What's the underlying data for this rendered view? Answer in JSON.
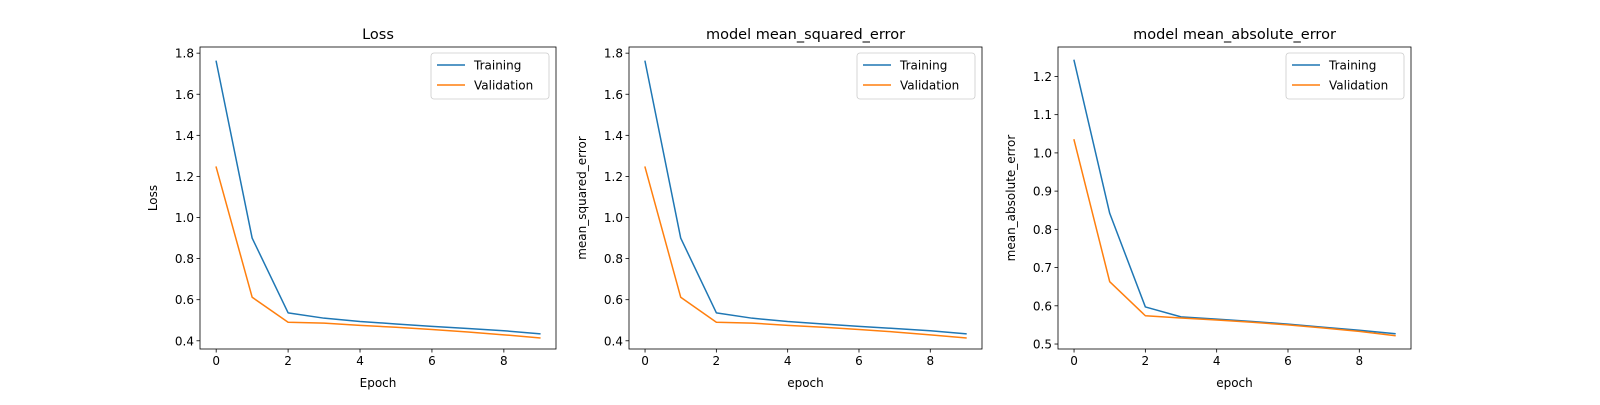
{
  "chart_data": [
    {
      "type": "line",
      "title": "Loss",
      "xlabel": "Epoch",
      "ylabel": "Loss",
      "x": [
        0,
        1,
        2,
        3,
        4,
        5,
        6,
        7,
        8,
        9
      ],
      "xlim": [
        -0.45,
        9.45
      ],
      "ylim": [
        0.36,
        1.83
      ],
      "xticks": [
        0,
        2,
        4,
        6,
        8
      ],
      "yticks": [
        0.4,
        0.6,
        0.8,
        1.0,
        1.2,
        1.4,
        1.6,
        1.8
      ],
      "ytick_labels": [
        "0.4",
        "0.6",
        "0.8",
        "1.0",
        "1.2",
        "1.4",
        "1.6",
        "1.8"
      ],
      "legend_position": "top-right",
      "series": [
        {
          "name": "Training",
          "color": "#1f77b4",
          "values": [
            1.76,
            0.9,
            0.536,
            0.51,
            0.494,
            0.482,
            0.47,
            0.46,
            0.449,
            0.434
          ]
        },
        {
          "name": "Validation",
          "color": "#ff7f0e",
          "values": [
            1.245,
            0.612,
            0.49,
            0.486,
            0.475,
            0.466,
            0.455,
            0.443,
            0.429,
            0.414
          ]
        }
      ]
    },
    {
      "type": "line",
      "title": "model mean_squared_error",
      "xlabel": "epoch",
      "ylabel": "mean_squared_error",
      "x": [
        0,
        1,
        2,
        3,
        4,
        5,
        6,
        7,
        8,
        9
      ],
      "xlim": [
        -0.45,
        9.45
      ],
      "ylim": [
        0.36,
        1.83
      ],
      "xticks": [
        0,
        2,
        4,
        6,
        8
      ],
      "yticks": [
        0.4,
        0.6,
        0.8,
        1.0,
        1.2,
        1.4,
        1.6,
        1.8
      ],
      "ytick_labels": [
        "0.4",
        "0.6",
        "0.8",
        "1.0",
        "1.2",
        "1.4",
        "1.6",
        "1.8"
      ],
      "legend_position": "top-right",
      "series": [
        {
          "name": "Training",
          "color": "#1f77b4",
          "values": [
            1.76,
            0.9,
            0.536,
            0.51,
            0.494,
            0.482,
            0.47,
            0.46,
            0.449,
            0.434
          ]
        },
        {
          "name": "Validation",
          "color": "#ff7f0e",
          "values": [
            1.245,
            0.612,
            0.49,
            0.486,
            0.475,
            0.466,
            0.455,
            0.443,
            0.429,
            0.414
          ]
        }
      ]
    },
    {
      "type": "line",
      "title": "model mean_absolute_error",
      "xlabel": "epoch",
      "ylabel": "mean_absolute_error",
      "x": [
        0,
        1,
        2,
        3,
        4,
        5,
        6,
        7,
        8,
        9
      ],
      "xlim": [
        -0.45,
        9.45
      ],
      "ylim": [
        0.487,
        1.277
      ],
      "xticks": [
        0,
        2,
        4,
        6,
        8
      ],
      "yticks": [
        0.5,
        0.6,
        0.7,
        0.8,
        0.9,
        1.0,
        1.1,
        1.2
      ],
      "ytick_labels": [
        "0.5",
        "0.6",
        "0.7",
        "0.8",
        "0.9",
        "1.0",
        "1.1",
        "1.2"
      ],
      "legend_position": "top-right",
      "series": [
        {
          "name": "Training",
          "color": "#1f77b4",
          "values": [
            1.242,
            0.842,
            0.597,
            0.571,
            0.565,
            0.559,
            0.552,
            0.544,
            0.536,
            0.527
          ]
        },
        {
          "name": "Validation",
          "color": "#ff7f0e",
          "values": [
            1.034,
            0.663,
            0.574,
            0.568,
            0.563,
            0.557,
            0.55,
            0.542,
            0.533,
            0.522
          ]
        }
      ]
    }
  ]
}
